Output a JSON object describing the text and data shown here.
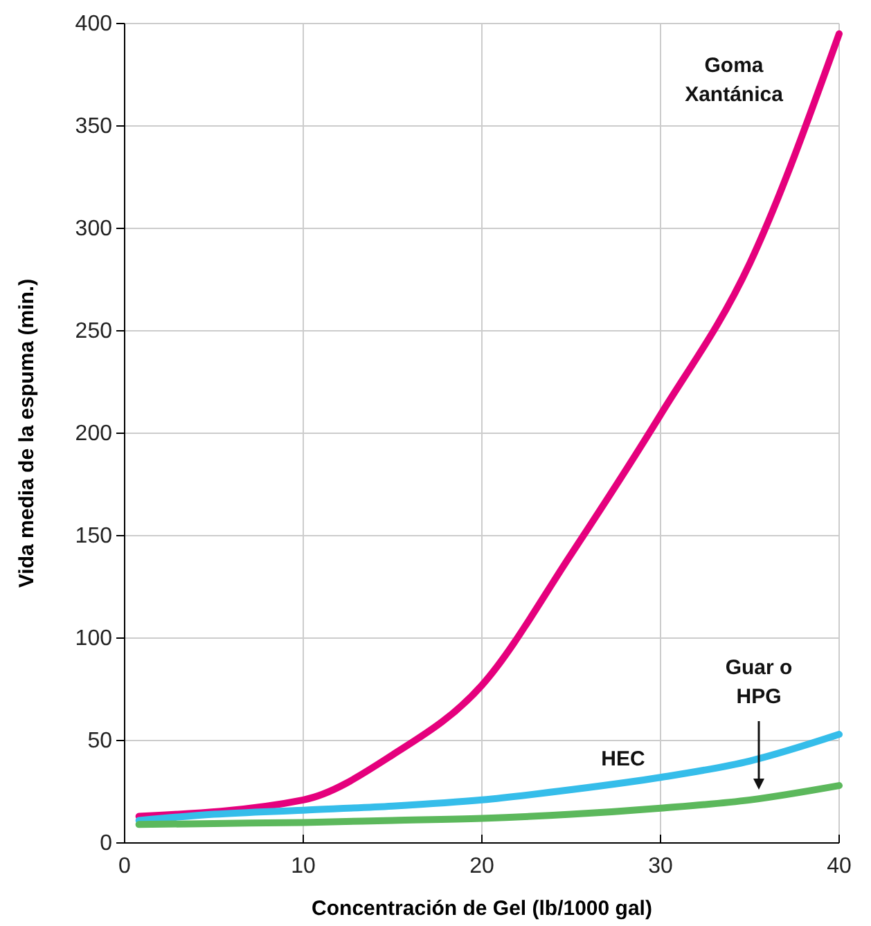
{
  "chart_data": {
    "type": "line",
    "xlabel": "Concentración de Gel (lb/1000 gal)",
    "ylabel": "Vida media de la espuma (min.)",
    "x": [
      0.8,
      5,
      10,
      15,
      20,
      25,
      30,
      35,
      40
    ],
    "series": [
      {
        "name": "Goma Xantánica",
        "color": "#e5007d",
        "values": [
          13,
          null,
          21,
          43,
          77,
          141,
          209,
          283,
          395
        ]
      },
      {
        "name": "HEC",
        "color": "#35bdea",
        "values": [
          11,
          14,
          16,
          18,
          21,
          26,
          32,
          40,
          53
        ]
      },
      {
        "name": "Guar o HPG",
        "color": "#5cb85c",
        "values": [
          9,
          9.5,
          10,
          11,
          12,
          14,
          17,
          21,
          28
        ]
      }
    ],
    "xlim": [
      0,
      40
    ],
    "ylim": [
      0,
      400
    ],
    "xticks": [
      0,
      10,
      20,
      30,
      40
    ],
    "yticks": [
      0,
      50,
      100,
      150,
      200,
      250,
      300,
      350,
      400
    ],
    "grid": true,
    "line_style": "solid",
    "marker": "none"
  }
}
